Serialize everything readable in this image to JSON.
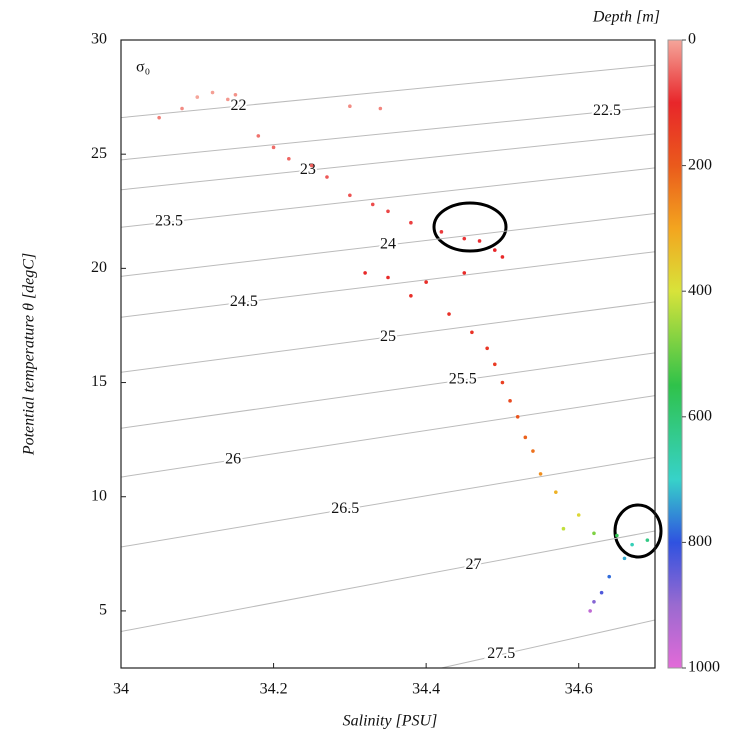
{
  "chart_data": {
    "type": "scatter",
    "xlabel": "Salinity [PSU]",
    "ylabel": "Potential temperature θ [degC]",
    "contour_title": "σ₀",
    "colorbar_label": "Depth [m]",
    "xlim": [
      34,
      34.7
    ],
    "xticks": [
      34,
      34.2,
      34.4,
      34.6
    ],
    "ylim": [
      2.5,
      30
    ],
    "yticks": [
      5,
      10,
      15,
      20,
      25,
      30
    ],
    "clim": [
      0,
      1000
    ],
    "cticks": [
      0,
      200,
      400,
      600,
      800,
      1000
    ],
    "colorscale": [
      [
        0,
        "#f5a59a"
      ],
      [
        100,
        "#e8262a"
      ],
      [
        200,
        "#ea5a1c"
      ],
      [
        300,
        "#f3a51f"
      ],
      [
        400,
        "#d8e33a"
      ],
      [
        550,
        "#2fc24a"
      ],
      [
        700,
        "#37d2c9"
      ],
      [
        800,
        "#2f52e0"
      ],
      [
        900,
        "#9a6ad0"
      ],
      [
        1000,
        "#e36ad8"
      ]
    ],
    "contours": [
      {
        "label": "22",
        "S": [
          34,
          34.7
        ],
        "T": [
          26.6,
          28.9
        ]
      },
      {
        "label": "22.5",
        "S": [
          34,
          34.7
        ],
        "T": [
          24.75,
          27.08
        ]
      },
      {
        "label": "23",
        "S": [
          34,
          34.7
        ],
        "T": [
          23.44,
          25.89
        ]
      },
      {
        "label": "23.5",
        "S": [
          34,
          34.7
        ],
        "T": [
          21.8,
          24.4
        ]
      },
      {
        "label": "24",
        "S": [
          34,
          34.7
        ],
        "T": [
          19.65,
          22.4
        ]
      },
      {
        "label": "24.5",
        "S": [
          34,
          34.7
        ],
        "T": [
          17.86,
          20.73
        ]
      },
      {
        "label": "25",
        "S": [
          34,
          34.7
        ],
        "T": [
          15.45,
          18.53
        ]
      },
      {
        "label": "25.5",
        "S": [
          34,
          34.7
        ],
        "T": [
          13.0,
          16.3
        ]
      },
      {
        "label": "26",
        "S": [
          34,
          34.7
        ],
        "T": [
          10.86,
          14.43
        ]
      },
      {
        "label": "26.5",
        "S": [
          34,
          34.7
        ],
        "T": [
          7.8,
          11.72
        ]
      },
      {
        "label": "27",
        "S": [
          34,
          34.7
        ],
        "T": [
          4.1,
          8.5
        ]
      },
      {
        "label": "27.5",
        "S": [
          34.42,
          34.7
        ],
        "T": [
          2.5,
          4.6
        ]
      }
    ],
    "x": [
      34.1,
      34.12,
      34.14,
      34.15,
      34.08,
      34.05,
      34.18,
      34.2,
      34.22,
      34.25,
      34.27,
      34.3,
      34.33,
      34.35,
      34.38,
      34.42,
      34.45,
      34.47,
      34.49,
      34.5,
      34.45,
      34.4,
      34.35,
      34.32,
      34.38,
      34.43,
      34.46,
      34.48,
      34.49,
      34.5,
      34.51,
      34.52,
      34.53,
      34.54,
      34.55,
      34.57,
      34.6,
      34.58,
      34.62,
      34.65,
      34.69,
      34.67,
      34.66,
      34.64,
      34.63,
      34.62,
      34.615,
      34.3,
      34.34
    ],
    "y": [
      27.5,
      27.7,
      27.4,
      27.6,
      27.0,
      26.6,
      25.8,
      25.3,
      24.8,
      24.5,
      24.0,
      23.2,
      22.8,
      22.5,
      22.0,
      21.6,
      21.3,
      21.2,
      20.8,
      20.5,
      19.8,
      19.4,
      19.6,
      19.8,
      18.8,
      18.0,
      17.2,
      16.5,
      15.8,
      15.0,
      14.2,
      13.5,
      12.6,
      12.0,
      11.0,
      10.2,
      9.2,
      8.6,
      8.4,
      8.3,
      8.1,
      7.9,
      7.3,
      6.5,
      5.8,
      5.4,
      5.0,
      27.1,
      27.0
    ],
    "depth": [
      0,
      5,
      10,
      15,
      20,
      30,
      40,
      45,
      50,
      55,
      60,
      65,
      70,
      75,
      80,
      85,
      90,
      95,
      100,
      105,
      110,
      115,
      110,
      105,
      115,
      120,
      125,
      130,
      140,
      150,
      170,
      190,
      210,
      230,
      270,
      320,
      380,
      420,
      480,
      560,
      620,
      680,
      730,
      780,
      830,
      880,
      950,
      20,
      25
    ]
  }
}
